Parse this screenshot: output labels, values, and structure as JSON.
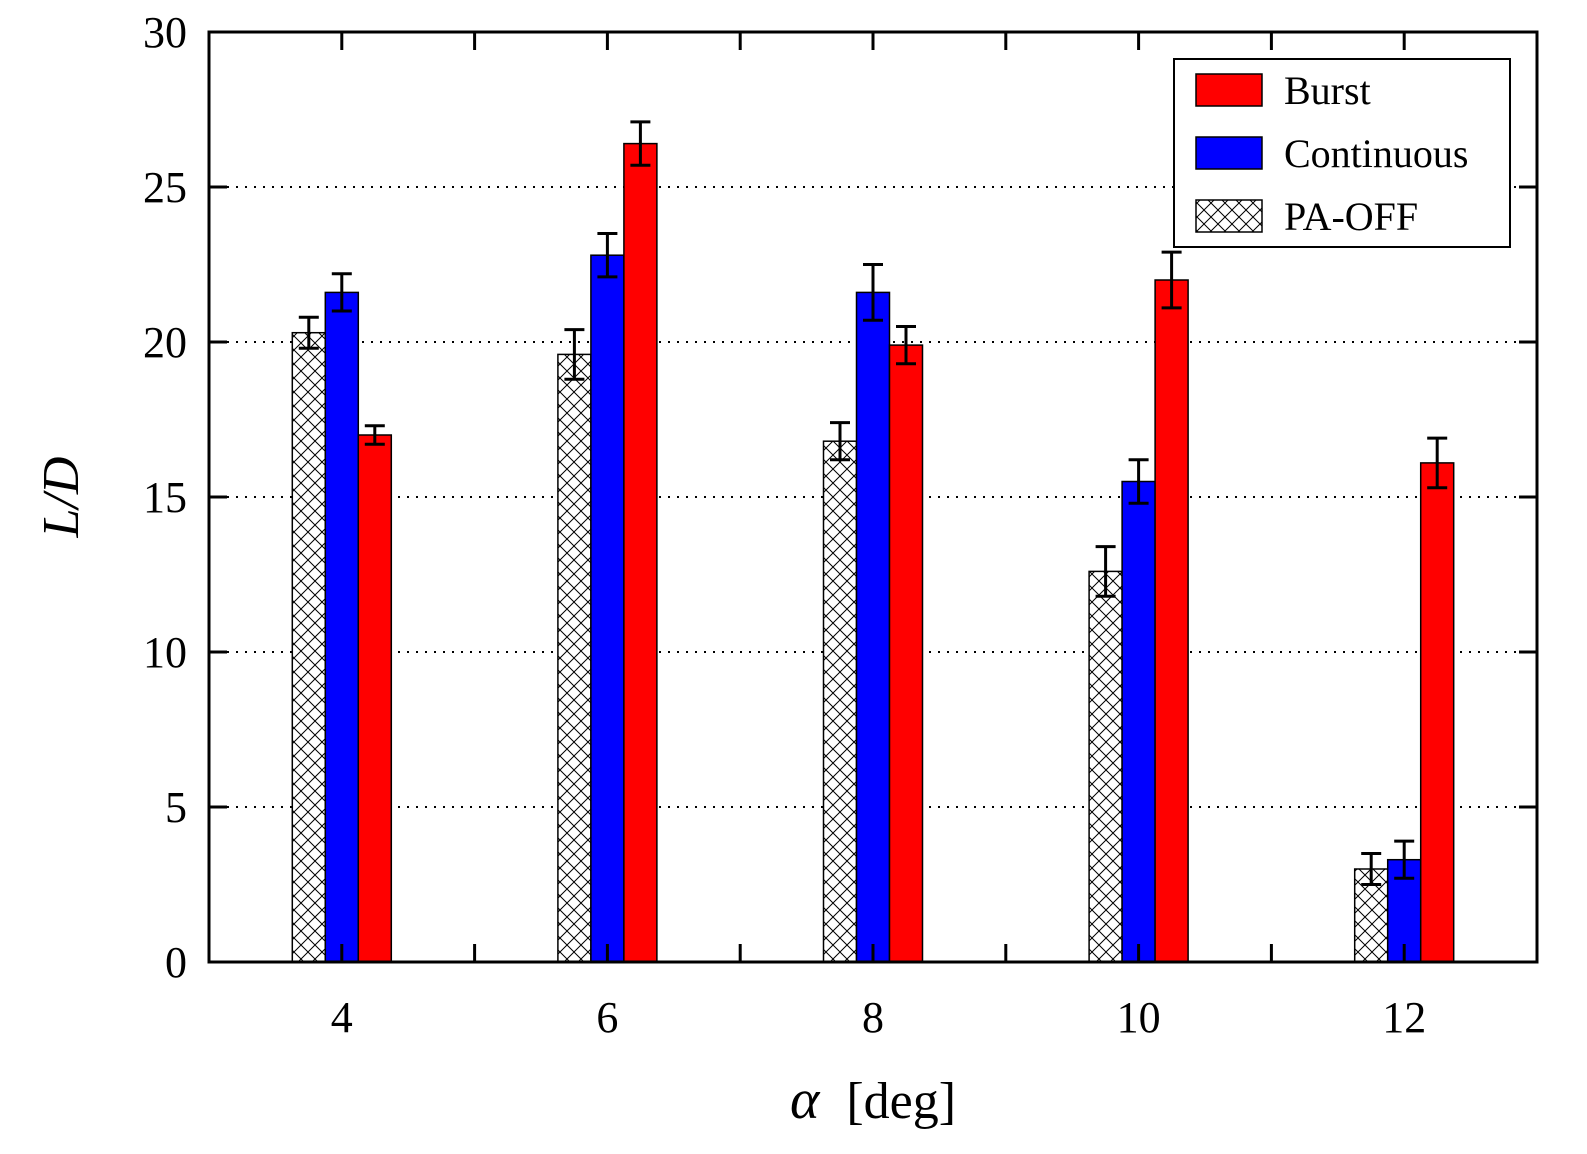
{
  "chart_data": {
    "type": "bar",
    "title": "",
    "xlabel_symbol": "α",
    "xlabel_unit": "[deg]",
    "ylabel": "L/D",
    "categories": [
      "4",
      "6",
      "8",
      "10",
      "12"
    ],
    "ylim": [
      0,
      30
    ],
    "yticks": [
      "0",
      "5",
      "10",
      "15",
      "20",
      "25",
      "30"
    ],
    "grid": "horizontal dotted",
    "legend_position": "top-right",
    "series": [
      {
        "name": "PA-OFF",
        "pattern": "crosshatch",
        "color": "#ffffff",
        "values": [
          20.3,
          19.6,
          16.8,
          12.6,
          3.0
        ],
        "errors": [
          0.5,
          0.8,
          0.6,
          0.8,
          0.5
        ]
      },
      {
        "name": "Continuous",
        "color": "#0000ff",
        "values": [
          21.6,
          22.8,
          21.6,
          15.5,
          3.3
        ],
        "errors": [
          0.6,
          0.7,
          0.9,
          0.7,
          0.6
        ]
      },
      {
        "name": "Burst",
        "color": "#ff0000",
        "values": [
          17.0,
          26.4,
          19.9,
          22.0,
          16.1
        ],
        "errors": [
          0.3,
          0.7,
          0.6,
          0.9,
          0.8
        ]
      }
    ],
    "legend_order": [
      "Burst",
      "Continuous",
      "PA-OFF"
    ]
  }
}
